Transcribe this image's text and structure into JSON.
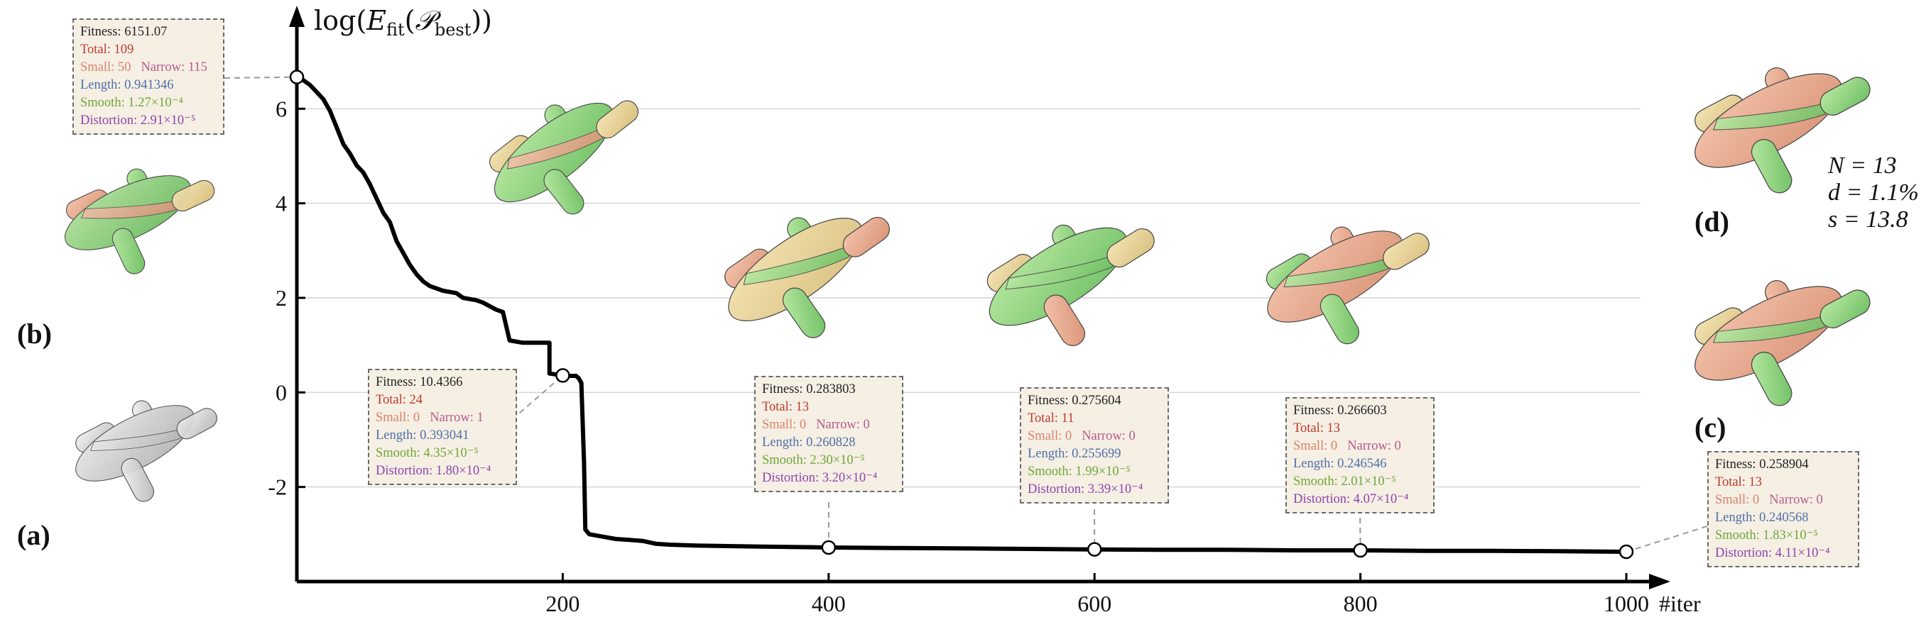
{
  "chart_data": {
    "type": "line",
    "y_axis_title": "log(E_fit(P_best))",
    "x_axis_title": "#iter",
    "xlim": [
      0,
      1000
    ],
    "ylim": [
      -4,
      8
    ],
    "x_ticks": [
      200,
      400,
      600,
      800,
      1000
    ],
    "x_tick_labels": [
      "200",
      "400",
      "600",
      "800",
      "1000"
    ],
    "y_ticks": [
      -2,
      0,
      2,
      4,
      6
    ],
    "y_tick_labels": [
      "-2",
      "0",
      "2",
      "4",
      "6"
    ],
    "grid": "horizontal",
    "series": [
      {
        "x": [
          0,
          5,
          10,
          15,
          20,
          25,
          30,
          35,
          40,
          45,
          50,
          55,
          60,
          65,
          70,
          75,
          80,
          85,
          90,
          95,
          100,
          110,
          120,
          125,
          135,
          140,
          150,
          155,
          160,
          170,
          180,
          190,
          190,
          200,
          205,
          210,
          212,
          214,
          216,
          217,
          220,
          230,
          240,
          250,
          260,
          270,
          280,
          300,
          350,
          400,
          450,
          500,
          550,
          600,
          650,
          700,
          750,
          800,
          850,
          900,
          950,
          1000
        ],
        "y": [
          6.67,
          6.6,
          6.5,
          6.35,
          6.2,
          5.95,
          5.6,
          5.25,
          5.05,
          4.8,
          4.65,
          4.4,
          4.1,
          3.8,
          3.6,
          3.2,
          2.95,
          2.7,
          2.5,
          2.35,
          2.25,
          2.15,
          2.1,
          2.0,
          1.95,
          1.9,
          1.75,
          1.7,
          1.1,
          1.05,
          1.05,
          1.05,
          0.4,
          0.36,
          0.35,
          0.35,
          0.3,
          0.2,
          -1.5,
          -2.9,
          -3.0,
          -3.05,
          -3.1,
          -3.12,
          -3.14,
          -3.2,
          -3.22,
          -3.24,
          -3.26,
          -3.28,
          -3.29,
          -3.3,
          -3.31,
          -3.32,
          -3.33,
          -3.33,
          -3.34,
          -3.34,
          -3.35,
          -3.35,
          -3.36,
          -3.37
        ]
      }
    ],
    "markers": [
      {
        "x": 0,
        "y": 6.67
      },
      {
        "x": 200,
        "y": 0.36
      },
      {
        "x": 400,
        "y": -3.28
      },
      {
        "x": 600,
        "y": -3.32
      },
      {
        "x": 800,
        "y": -3.34
      },
      {
        "x": 1000,
        "y": -3.37
      }
    ]
  },
  "annotations": [
    {
      "fitness": "Fitness: 6151.07",
      "total": "Total: 109",
      "small": "Small: 50",
      "narrow": "Narrow: 115",
      "length": "Length: 0.941346",
      "smooth": "Smooth: 1.27×10⁻⁴",
      "distortion": "Distortion: 2.91×10⁻⁵"
    },
    {
      "fitness": "Fitness: 10.4366",
      "total": "Total: 24",
      "small": "Small: 0",
      "narrow": "Narrow: 1",
      "length": "Length: 0.393041",
      "smooth": "Smooth: 4.35×10⁻⁵",
      "distortion": "Distortion: 1.80×10⁻⁴"
    },
    {
      "fitness": "Fitness: 0.283803",
      "total": "Total: 13",
      "small": "Small: 0",
      "narrow": "Narrow: 0",
      "length": "Length: 0.260828",
      "smooth": "Smooth: 2.30×10⁻⁵",
      "distortion": "Distortion: 3.20×10⁻⁴"
    },
    {
      "fitness": "Fitness: 0.275604",
      "total": "Total: 11",
      "small": "Small: 0",
      "narrow": "Narrow: 0",
      "length": "Length: 0.255699",
      "smooth": "Smooth: 1.99×10⁻⁵",
      "distortion": "Distortion: 3.39×10⁻⁴"
    },
    {
      "fitness": "Fitness: 0.266603",
      "total": "Total: 13",
      "small": "Small: 0",
      "narrow": "Narrow: 0",
      "length": "Length: 0.246546",
      "smooth": "Smooth: 2.01×10⁻⁵",
      "distortion": "Distortion: 4.07×10⁻⁴"
    },
    {
      "fitness": "Fitness: 0.258904",
      "total": "Total: 13",
      "small": "Small: 0",
      "narrow": "Narrow: 0",
      "length": "Length: 0.240568",
      "smooth": "Smooth: 1.83×10⁻⁵",
      "distortion": "Distortion: 4.11×10⁻⁴"
    }
  ],
  "panels": {
    "a": "(a)",
    "b": "(b)",
    "c": "(c)",
    "d": "(d)"
  },
  "params": {
    "n": "N = 13",
    "d": "d = 1.1%",
    "s": "s = 13.8"
  },
  "colors": {
    "segment_green": "#8fd47e",
    "segment_salmon": "#e9a58a",
    "segment_beige": "#ead59a",
    "segment_yellow": "#d8e08a",
    "mesh_gray": "#d9d9d9",
    "box_fill": "#f5efe4"
  }
}
